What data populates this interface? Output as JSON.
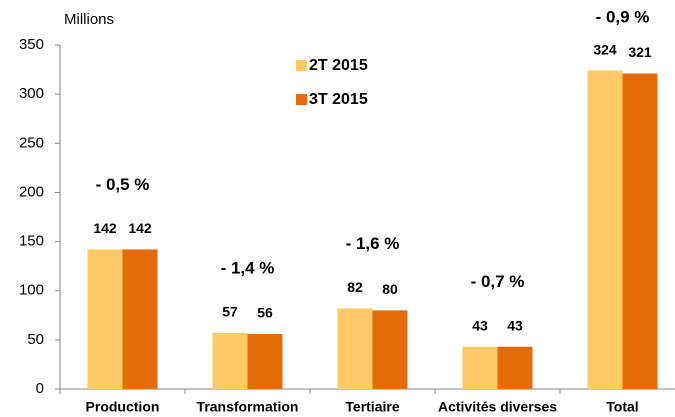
{
  "chart_data": {
    "type": "bar",
    "y_label": "Millions",
    "categories": [
      "Production",
      "Transformation",
      "Tertiaire",
      "Activités diverses",
      "Total"
    ],
    "series": [
      {
        "name": "2T 2015",
        "color": "#ffc966",
        "values": [
          142,
          57,
          82,
          43,
          324
        ]
      },
      {
        "name": "3T 2015",
        "color": "#e36c09",
        "values": [
          142,
          56,
          80,
          43,
          321
        ]
      }
    ],
    "annotations": [
      "- 0,5 %",
      "- 1,4 %",
      "- 1,6 %",
      "- 0,7 %",
      "- 0,9 %"
    ],
    "annotation_color": "#ff0000",
    "ylim": [
      0,
      350
    ],
    "yticks": [
      0,
      50,
      100,
      150,
      200,
      250,
      300,
      350
    ],
    "grid": false
  }
}
